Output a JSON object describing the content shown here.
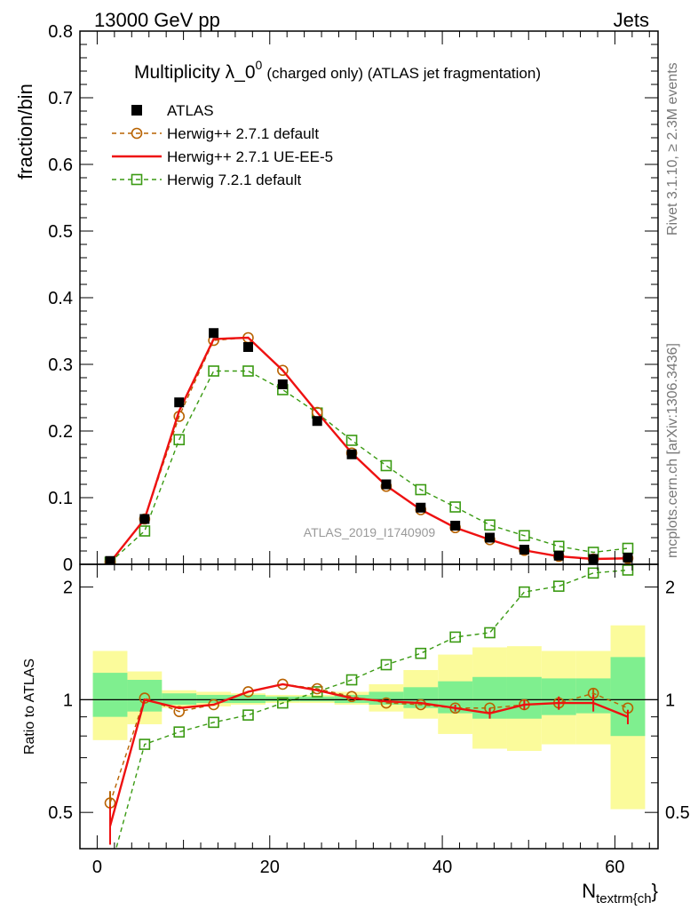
{
  "header": {
    "left": "13000 GeV pp",
    "right": "Jets"
  },
  "side": {
    "rivet": "Rivet 3.1.10, ≥ 2.3M events",
    "mcplots": "mcplots.cern.ch [arXiv:1306.3436]"
  },
  "chart_data": [
    {
      "type": "line",
      "title": "Multiplicity λ_0",
      "title_superscript": "0",
      "subtitle": "(charged only) (ATLAS jet fragmentation)",
      "ylabel": "fraction/bin",
      "xlabel_main": "N",
      "xlabel_sub": "textrm{ch",
      "xlabel_close": "}",
      "watermark": "ATLAS_2019_I1740909",
      "xlim": [
        -2,
        65
      ],
      "ylim": [
        0,
        0.8
      ],
      "yticks": [
        0,
        0.1,
        0.2,
        0.3,
        0.4,
        0.5,
        0.6,
        0.7,
        0.8
      ],
      "ytick_labels": [
        "0",
        "0.1",
        "0.2",
        "0.3",
        "0.4",
        "0.5",
        "0.6",
        "0.7",
        "0.8"
      ],
      "legend_position": "top-left",
      "x": [
        1.5,
        5.5,
        9.5,
        13.5,
        17.5,
        21.5,
        25.5,
        29.5,
        33.5,
        37.5,
        41.5,
        45.5,
        49.5,
        53.5,
        57.5,
        61.5
      ],
      "series": [
        {
          "name": "ATLAS",
          "style": "data",
          "color": "#000000",
          "values": [
            0.005,
            0.068,
            0.243,
            0.347,
            0.326,
            0.27,
            0.215,
            0.165,
            0.12,
            0.085,
            0.058,
            0.04,
            0.022,
            0.013,
            0.008,
            0.01
          ]
        },
        {
          "name": "Herwig++ 2.7.1 default",
          "style": "circle-dashed",
          "color": "#b86200",
          "values": [
            0.003,
            0.068,
            0.222,
            0.336,
            0.34,
            0.291,
            0.228,
            0.167,
            0.117,
            0.082,
            0.055,
            0.037,
            0.021,
            0.012,
            0.008,
            0.009
          ]
        },
        {
          "name": "Herwig++ 2.7.1 UE-EE-5",
          "style": "solid",
          "color": "#ee1111",
          "values": [
            0.003,
            0.068,
            0.23,
            0.338,
            0.34,
            0.291,
            0.228,
            0.167,
            0.118,
            0.082,
            0.055,
            0.037,
            0.021,
            0.012,
            0.008,
            0.009
          ]
        },
        {
          "name": "Herwig 7.2.1 default",
          "style": "square-dashed",
          "color": "#3a9a12",
          "values": [
            0.003,
            0.05,
            0.187,
            0.29,
            0.29,
            0.262,
            0.227,
            0.186,
            0.148,
            0.112,
            0.086,
            0.059,
            0.043,
            0.027,
            0.018,
            0.024
          ]
        }
      ]
    },
    {
      "type": "line",
      "ylabel": "Ratio to ATLAS",
      "xlim": [
        -2,
        65
      ],
      "ylim": [
        0.4,
        2.3
      ],
      "yticks": [
        0.5,
        1,
        2
      ],
      "ytick_labels": [
        "0.5",
        "1",
        "2"
      ],
      "xticks": [
        0,
        20,
        40,
        60
      ],
      "xtick_labels": [
        "0",
        "20",
        "40",
        "60"
      ],
      "bin_edges": [
        -0.5,
        3.5,
        7.5,
        11.5,
        15.5,
        19.5,
        23.5,
        27.5,
        31.5,
        35.5,
        39.5,
        43.5,
        47.5,
        51.5,
        55.5,
        59.5,
        63.5
      ],
      "band_inner": {
        "color": "#7fef8f",
        "lo": [
          0.9,
          0.93,
          0.97,
          0.98,
          0.98,
          0.99,
          0.99,
          0.98,
          0.97,
          0.95,
          0.92,
          0.89,
          0.89,
          0.91,
          0.92,
          0.8
        ],
        "hi": [
          1.18,
          1.13,
          1.04,
          1.03,
          1.03,
          1.02,
          1.02,
          1.03,
          1.05,
          1.08,
          1.12,
          1.15,
          1.15,
          1.14,
          1.14,
          1.3
        ]
      },
      "band_outer": {
        "color": "#fbfb9b",
        "lo": [
          0.78,
          0.86,
          0.95,
          0.96,
          0.97,
          0.98,
          0.98,
          0.97,
          0.93,
          0.89,
          0.81,
          0.74,
          0.73,
          0.76,
          0.76,
          0.51
        ],
        "hi": [
          1.35,
          1.19,
          1.06,
          1.05,
          1.04,
          1.03,
          1.03,
          1.05,
          1.1,
          1.2,
          1.32,
          1.38,
          1.39,
          1.35,
          1.35,
          1.58
        ]
      },
      "x": [
        1.5,
        5.5,
        9.5,
        13.5,
        17.5,
        21.5,
        25.5,
        29.5,
        33.5,
        37.5,
        41.5,
        45.5,
        49.5,
        53.5,
        57.5,
        61.5
      ],
      "series": [
        {
          "name": "Herwig++ 2.7.1 default",
          "style": "circle-dashed",
          "color": "#b86200",
          "values": [
            0.53,
            1.01,
            0.93,
            0.97,
            1.05,
            1.1,
            1.07,
            1.02,
            0.98,
            0.97,
            0.95,
            0.95,
            0.97,
            0.98,
            1.04,
            0.95
          ],
          "err": [
            0.04,
            0.0,
            0.0,
            0.0,
            0.0,
            0.0,
            0.0,
            0.0,
            0.0,
            0.0,
            0.0,
            0.0,
            0.0,
            0.0,
            0.03,
            0.0
          ]
        },
        {
          "name": "Herwig++ 2.7.1 UE-EE-5",
          "style": "solid",
          "color": "#ee1111",
          "values": [
            0.46,
            1.0,
            0.95,
            0.97,
            1.05,
            1.1,
            1.06,
            1.01,
            0.99,
            0.98,
            0.95,
            0.92,
            0.97,
            0.98,
            0.98,
            0.9
          ],
          "err": [
            0.06,
            0.0,
            0.0,
            0.0,
            0.0,
            0.0,
            0.0,
            0.0,
            0.0,
            0.0,
            0.02,
            0.03,
            0.03,
            0.04,
            0.05,
            0.04
          ]
        },
        {
          "name": "Herwig 7.2.1 default",
          "style": "square-dashed",
          "color": "#3a9a12",
          "values": [
            0.35,
            0.76,
            0.82,
            0.87,
            0.91,
            0.98,
            1.05,
            1.13,
            1.24,
            1.33,
            1.47,
            1.51,
            1.94,
            2.01,
            2.18,
            2.22
          ]
        }
      ]
    }
  ]
}
